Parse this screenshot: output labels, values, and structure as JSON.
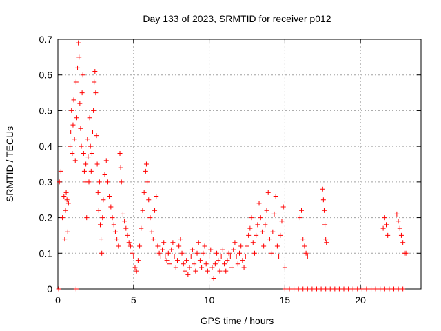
{
  "chart_data": {
    "type": "scatter",
    "title": "Day 133 of 2023, SRMTID for receiver p012",
    "xlabel": "GPS time / hours",
    "ylabel": "SRMTID / TECUs",
    "xlim": [
      0,
      24
    ],
    "ylim": [
      0,
      0.7
    ],
    "xticks": [
      0,
      5,
      10,
      15,
      20
    ],
    "yticks": [
      0,
      0.1,
      0.2,
      0.3,
      0.4,
      0.5,
      0.6,
      0.7
    ],
    "grid": true,
    "marker": "+",
    "color": "#ff0000",
    "series": [
      {
        "name": "SRMTID",
        "points": [
          [
            0.1,
            0.3
          ],
          [
            0.2,
            0.33
          ],
          [
            0.3,
            0.2
          ],
          [
            0.4,
            0.26
          ],
          [
            0.45,
            0.14
          ],
          [
            0.5,
            0.22
          ],
          [
            0.55,
            0.27
          ],
          [
            0.6,
            0.25
          ],
          [
            0.65,
            0.16
          ],
          [
            0.7,
            0.24
          ],
          [
            0.8,
            0.4
          ],
          [
            0.85,
            0.44
          ],
          [
            0.9,
            0.5
          ],
          [
            0.95,
            0.38
          ],
          [
            1.0,
            0.46
          ],
          [
            1.05,
            0.53
          ],
          [
            1.1,
            0.42
          ],
          [
            1.15,
            0.36
          ],
          [
            1.2,
            0.58
          ],
          [
            1.25,
            0.48
          ],
          [
            1.3,
            0.62
          ],
          [
            1.35,
            0.69
          ],
          [
            1.4,
            0.65
          ],
          [
            1.45,
            0.52
          ],
          [
            1.5,
            0.45
          ],
          [
            1.55,
            0.4
          ],
          [
            1.6,
            0.55
          ],
          [
            1.65,
            0.6
          ],
          [
            1.7,
            0.38
          ],
          [
            1.75,
            0.33
          ],
          [
            1.8,
            0.3
          ],
          [
            1.85,
            0.35
          ],
          [
            1.9,
            0.2
          ],
          [
            1.95,
            0.42
          ],
          [
            2.0,
            0.37
          ],
          [
            2.05,
            0.3
          ],
          [
            2.1,
            0.48
          ],
          [
            2.15,
            0.4
          ],
          [
            2.2,
            0.33
          ],
          [
            2.25,
            0.38
          ],
          [
            2.3,
            0.44
          ],
          [
            2.35,
            0.5
          ],
          [
            2.4,
            0.58
          ],
          [
            2.45,
            0.61
          ],
          [
            2.5,
            0.55
          ],
          [
            2.55,
            0.43
          ],
          [
            2.6,
            0.35
          ],
          [
            2.65,
            0.27
          ],
          [
            2.7,
            0.22
          ],
          [
            2.75,
            0.3
          ],
          [
            2.8,
            0.18
          ],
          [
            2.85,
            0.14
          ],
          [
            2.9,
            0.1
          ],
          [
            2.95,
            0.2
          ],
          [
            3.0,
            0.25
          ],
          [
            3.1,
            0.32
          ],
          [
            3.2,
            0.36
          ],
          [
            3.3,
            0.3
          ],
          [
            3.4,
            0.26
          ],
          [
            3.5,
            0.23
          ],
          [
            3.6,
            0.2
          ],
          [
            3.7,
            0.18
          ],
          [
            3.8,
            0.16
          ],
          [
            3.9,
            0.14
          ],
          [
            4.0,
            0.12
          ],
          [
            4.1,
            0.38
          ],
          [
            4.15,
            0.34
          ],
          [
            4.2,
            0.3
          ],
          [
            4.3,
            0.21
          ],
          [
            4.4,
            0.19
          ],
          [
            4.5,
            0.17
          ],
          [
            4.6,
            0.15
          ],
          [
            4.7,
            0.13
          ],
          [
            4.8,
            0.12
          ],
          [
            4.9,
            0.1
          ],
          [
            5.0,
            0.09
          ],
          [
            5.1,
            0.06
          ],
          [
            5.2,
            0.05
          ],
          [
            5.3,
            0.08
          ],
          [
            5.4,
            0.12
          ],
          [
            5.5,
            0.17
          ],
          [
            5.6,
            0.22
          ],
          [
            5.7,
            0.27
          ],
          [
            5.8,
            0.33
          ],
          [
            5.85,
            0.35
          ],
          [
            5.9,
            0.3
          ],
          [
            6.0,
            0.25
          ],
          [
            6.1,
            0.2
          ],
          [
            6.2,
            0.16
          ],
          [
            6.3,
            0.14
          ],
          [
            6.4,
            0.22
          ],
          [
            6.5,
            0.26
          ],
          [
            6.6,
            0.12
          ],
          [
            6.7,
            0.1
          ],
          [
            6.8,
            0.09
          ],
          [
            6.9,
            0.11
          ],
          [
            7.0,
            0.13
          ],
          [
            7.1,
            0.09
          ],
          [
            7.2,
            0.08
          ],
          [
            7.3,
            0.1
          ],
          [
            7.4,
            0.07
          ],
          [
            7.5,
            0.11
          ],
          [
            7.6,
            0.13
          ],
          [
            7.7,
            0.09
          ],
          [
            7.8,
            0.06
          ],
          [
            7.9,
            0.08
          ],
          [
            8.0,
            0.12
          ],
          [
            8.1,
            0.14
          ],
          [
            8.2,
            0.1
          ],
          [
            8.3,
            0.07
          ],
          [
            8.4,
            0.05
          ],
          [
            8.5,
            0.08
          ],
          [
            8.6,
            0.04
          ],
          [
            8.7,
            0.06
          ],
          [
            8.8,
            0.09
          ],
          [
            8.9,
            0.11
          ],
          [
            9.0,
            0.07
          ],
          [
            9.1,
            0.05
          ],
          [
            9.2,
            0.1
          ],
          [
            9.3,
            0.13
          ],
          [
            9.4,
            0.08
          ],
          [
            9.5,
            0.06
          ],
          [
            9.6,
            0.1
          ],
          [
            9.7,
            0.12
          ],
          [
            9.8,
            0.07
          ],
          [
            9.9,
            0.05
          ],
          [
            10.0,
            0.09
          ],
          [
            10.1,
            0.11
          ],
          [
            10.2,
            0.06
          ],
          [
            10.3,
            0.03
          ],
          [
            10.4,
            0.07
          ],
          [
            10.5,
            0.1
          ],
          [
            10.6,
            0.08
          ],
          [
            10.7,
            0.05
          ],
          [
            10.8,
            0.09
          ],
          [
            10.9,
            0.11
          ],
          [
            11.0,
            0.07
          ],
          [
            11.1,
            0.05
          ],
          [
            11.2,
            0.08
          ],
          [
            11.3,
            0.1
          ],
          [
            11.4,
            0.09
          ],
          [
            11.5,
            0.06
          ],
          [
            11.6,
            0.11
          ],
          [
            11.7,
            0.13
          ],
          [
            11.8,
            0.09
          ],
          [
            11.9,
            0.07
          ],
          [
            12.0,
            0.1
          ],
          [
            12.1,
            0.12
          ],
          [
            12.2,
            0.08
          ],
          [
            12.3,
            0.06
          ],
          [
            12.4,
            0.09
          ],
          [
            12.5,
            0.12
          ],
          [
            12.6,
            0.15
          ],
          [
            12.7,
            0.17
          ],
          [
            12.8,
            0.2
          ],
          [
            12.9,
            0.13
          ],
          [
            13.0,
            0.1
          ],
          [
            13.1,
            0.15
          ],
          [
            13.2,
            0.18
          ],
          [
            13.3,
            0.24
          ],
          [
            13.4,
            0.2
          ],
          [
            13.5,
            0.16
          ],
          [
            13.6,
            0.12
          ],
          [
            13.7,
            0.18
          ],
          [
            13.8,
            0.22
          ],
          [
            13.9,
            0.27
          ],
          [
            14.0,
            0.14
          ],
          [
            14.1,
            0.1
          ],
          [
            14.2,
            0.16
          ],
          [
            14.3,
            0.21
          ],
          [
            14.4,
            0.26
          ],
          [
            14.5,
            0.12
          ],
          [
            14.6,
            0.09
          ],
          [
            14.7,
            0.15
          ],
          [
            14.8,
            0.19
          ],
          [
            14.9,
            0.23
          ],
          [
            15.0,
            0.06
          ],
          [
            16.0,
            0.2
          ],
          [
            16.1,
            0.22
          ],
          [
            16.2,
            0.14
          ],
          [
            16.3,
            0.12
          ],
          [
            16.4,
            0.1
          ],
          [
            16.5,
            0.09
          ],
          [
            17.5,
            0.28
          ],
          [
            17.55,
            0.25
          ],
          [
            17.6,
            0.22
          ],
          [
            17.65,
            0.18
          ],
          [
            17.7,
            0.14
          ],
          [
            17.75,
            0.13
          ],
          [
            21.5,
            0.17
          ],
          [
            21.6,
            0.2
          ],
          [
            21.7,
            0.18
          ],
          [
            21.8,
            0.15
          ],
          [
            22.4,
            0.21
          ],
          [
            22.5,
            0.19
          ],
          [
            22.6,
            0.17
          ],
          [
            22.7,
            0.15
          ],
          [
            22.8,
            0.13
          ],
          [
            22.9,
            0.1
          ],
          [
            23.0,
            0.1
          ],
          [
            0.05,
            0.0
          ],
          [
            1.2,
            0.0
          ],
          [
            15.0,
            0.0
          ],
          [
            15.3,
            0.0
          ],
          [
            15.6,
            0.0
          ],
          [
            15.9,
            0.0
          ],
          [
            16.2,
            0.0
          ],
          [
            16.5,
            0.0
          ],
          [
            16.8,
            0.0
          ],
          [
            17.1,
            0.0
          ],
          [
            17.4,
            0.0
          ],
          [
            17.7,
            0.0
          ],
          [
            18.0,
            0.0
          ],
          [
            18.3,
            0.0
          ],
          [
            18.6,
            0.0
          ],
          [
            18.9,
            0.0
          ],
          [
            19.2,
            0.0
          ],
          [
            19.5,
            0.0
          ],
          [
            19.8,
            0.0
          ],
          [
            20.1,
            0.0
          ],
          [
            20.4,
            0.0
          ],
          [
            20.7,
            0.0
          ],
          [
            21.0,
            0.0
          ],
          [
            21.3,
            0.0
          ],
          [
            21.6,
            0.0
          ],
          [
            21.9,
            0.0
          ],
          [
            22.2,
            0.0
          ],
          [
            22.5,
            0.0
          ],
          [
            22.8,
            0.0
          ]
        ]
      }
    ]
  }
}
